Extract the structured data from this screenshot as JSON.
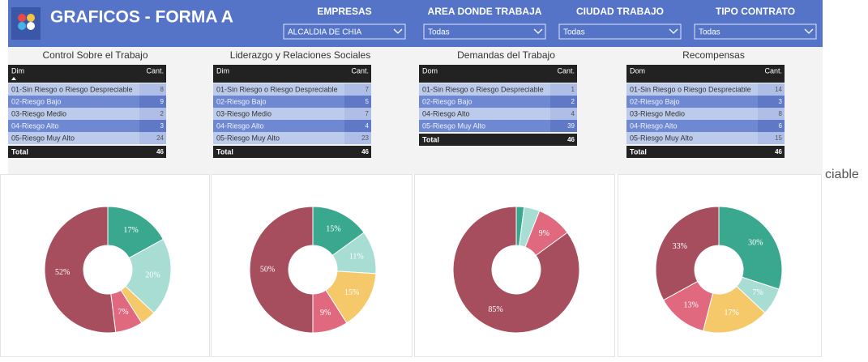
{
  "header": {
    "title": "GRAFICOS - FORMA A"
  },
  "filters": [
    {
      "label": "EMPRESAS",
      "value": "ALCALDIA DE CHIA"
    },
    {
      "label": "AREA DONDE TRABAJA",
      "value": "Todas"
    },
    {
      "label": "CIUDAD TRABAJO",
      "value": "Todas"
    },
    {
      "label": "TIPO CONTRATO",
      "value": "Todas"
    }
  ],
  "tables": [
    {
      "title": "Control Sobre el Trabajo",
      "columns": [
        "Dim",
        "Cant."
      ],
      "rows": [
        [
          "01-Sin Riesgo o Riesgo Despreciable",
          8
        ],
        [
          "02-Riesgo Bajo",
          9
        ],
        [
          "03-Riesgo Medio",
          2
        ],
        [
          "04-Riesgo Alto",
          3
        ],
        [
          "05-Riesgo Muy Alto",
          24
        ]
      ],
      "total": [
        "Total",
        46
      ]
    },
    {
      "title": "Liderazgo y Relaciones Sociales",
      "columns": [
        "Dim",
        "Cant."
      ],
      "rows": [
        [
          "01-Sin Riesgo o Riesgo Despreciable",
          7
        ],
        [
          "02-Riesgo Bajo",
          5
        ],
        [
          "03-Riesgo Medio",
          7
        ],
        [
          "04-Riesgo Alto",
          4
        ],
        [
          "05-Riesgo Muy Alto",
          23
        ]
      ],
      "total": [
        "Total",
        46
      ]
    },
    {
      "title": "Demandas del Trabajo",
      "columns": [
        "Dom",
        "Cant."
      ],
      "rows": [
        [
          "01-Sin Riesgo o Riesgo Despreciable",
          1
        ],
        [
          "02-Riesgo Bajo",
          2
        ],
        [
          "04-Riesgo Alto",
          4
        ],
        [
          "05-Riesgo Muy Alto",
          39
        ]
      ],
      "total": [
        "Total",
        46
      ]
    },
    {
      "title": "Recompensas",
      "columns": [
        "Dom",
        "Cant."
      ],
      "rows": [
        [
          "01-Sin Riesgo o Riesgo Despreciable",
          14
        ],
        [
          "02-Riesgo Bajo",
          3
        ],
        [
          "03-Riesgo Medio",
          8
        ],
        [
          "04-Riesgo Alto",
          6
        ],
        [
          "05-Riesgo Muy Alto",
          15
        ]
      ],
      "total": [
        "Total",
        46
      ]
    }
  ],
  "chart_data": [
    {
      "type": "pie",
      "values": [
        17,
        20,
        4,
        7,
        52
      ],
      "value_labels": [
        "17%",
        "20%",
        null,
        "7%",
        "52%"
      ],
      "colors": [
        "#3aa88f",
        "#a8ddd4",
        "#f5c96a",
        "#e0687f",
        "#a64d5e"
      ]
    },
    {
      "type": "pie",
      "values": [
        15,
        11,
        15,
        9,
        50
      ],
      "value_labels": [
        "15%",
        "11%",
        "15%",
        "9%",
        "50%"
      ],
      "colors": [
        "#3aa88f",
        "#a8ddd4",
        "#f5c96a",
        "#e0687f",
        "#a64d5e"
      ]
    },
    {
      "type": "pie",
      "values": [
        2,
        4,
        9,
        85
      ],
      "value_labels": [
        null,
        null,
        "9%",
        "85%"
      ],
      "colors": [
        "#3aa88f",
        "#a8ddd4",
        "#e0687f",
        "#a64d5e"
      ]
    },
    {
      "type": "pie",
      "values": [
        30,
        7,
        17,
        13,
        33
      ],
      "value_labels": [
        "30%",
        "7%",
        "17%",
        "13%",
        "33%"
      ],
      "colors": [
        "#3aa88f",
        "#a8ddd4",
        "#f5c96a",
        "#e0687f",
        "#a64d5e"
      ]
    }
  ],
  "side_text": "ciable"
}
